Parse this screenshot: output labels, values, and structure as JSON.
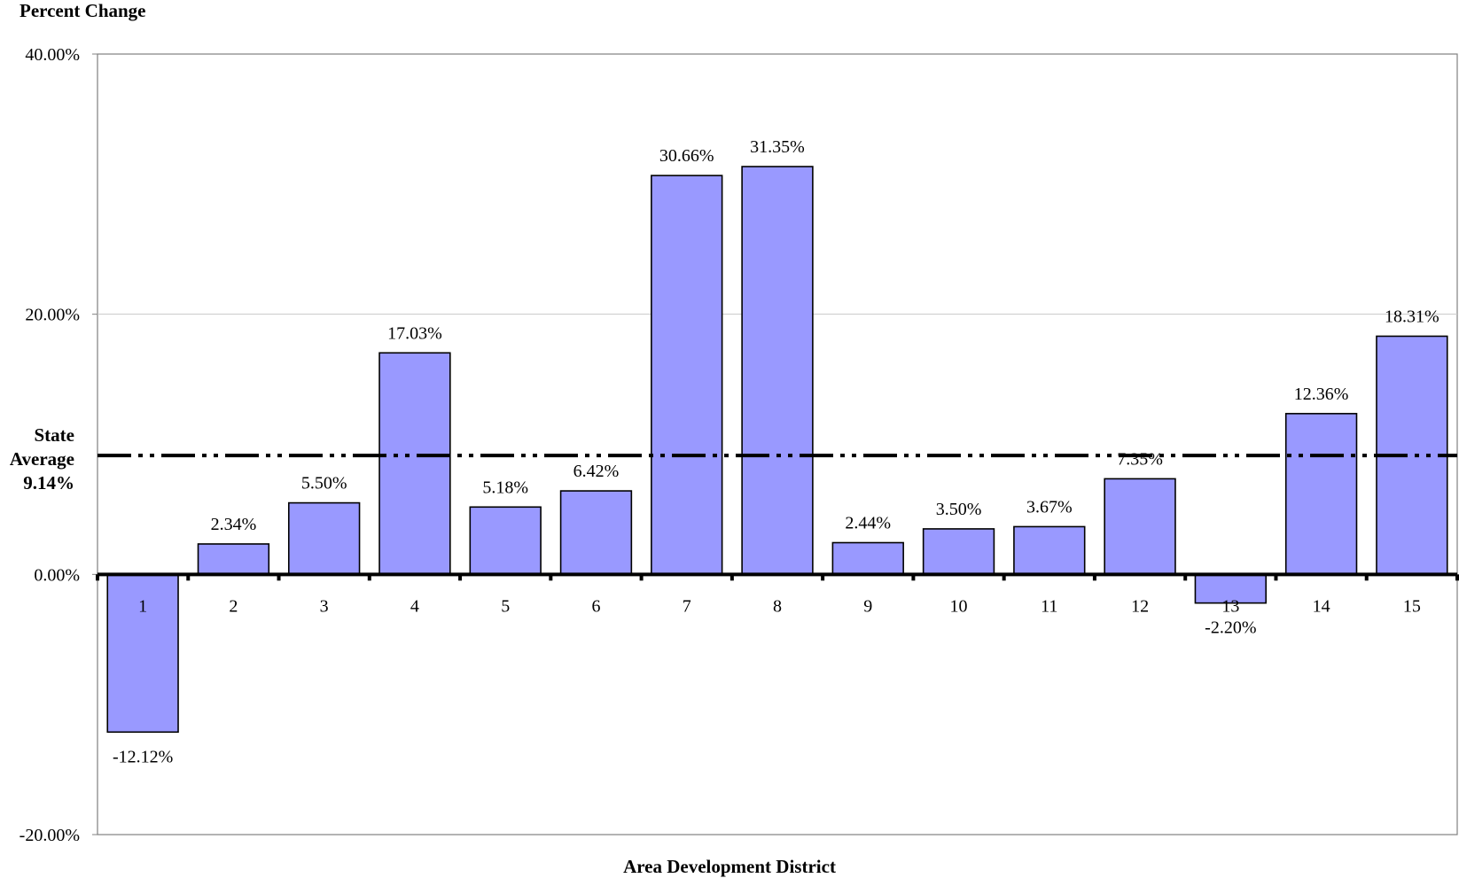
{
  "chart_data": {
    "type": "bar",
    "title": "",
    "ylabel": "Percent Change",
    "xlabel": "Area Development District",
    "categories": [
      "1",
      "2",
      "3",
      "4",
      "5",
      "6",
      "7",
      "8",
      "9",
      "10",
      "11",
      "12",
      "13",
      "14",
      "15"
    ],
    "values": [
      -12.12,
      2.34,
      5.5,
      17.03,
      5.18,
      6.42,
      30.66,
      31.35,
      2.44,
      3.5,
      3.67,
      7.35,
      -2.2,
      12.36,
      18.31
    ],
    "data_labels": [
      "-12.12%",
      "2.34%",
      "5.50%",
      "17.03%",
      "5.18%",
      "6.42%",
      "30.66%",
      "31.35%",
      "2.44%",
      "3.50%",
      "3.67%",
      "7.35%",
      "-2.20%",
      "12.36%",
      "18.31%"
    ],
    "ylim": [
      -20,
      40
    ],
    "yticks": [
      -20,
      0,
      20,
      40
    ],
    "ytick_labels": [
      "-20.00%",
      "0.00%",
      "20.00%",
      "40.00%"
    ],
    "grid": "horizontal at 20.00%",
    "bar_color": "#9999ff",
    "reference_line": {
      "value": 9.14,
      "label_lines": [
        "State",
        "Average",
        "9.14%"
      ],
      "style": "dash-dot-dot"
    }
  }
}
